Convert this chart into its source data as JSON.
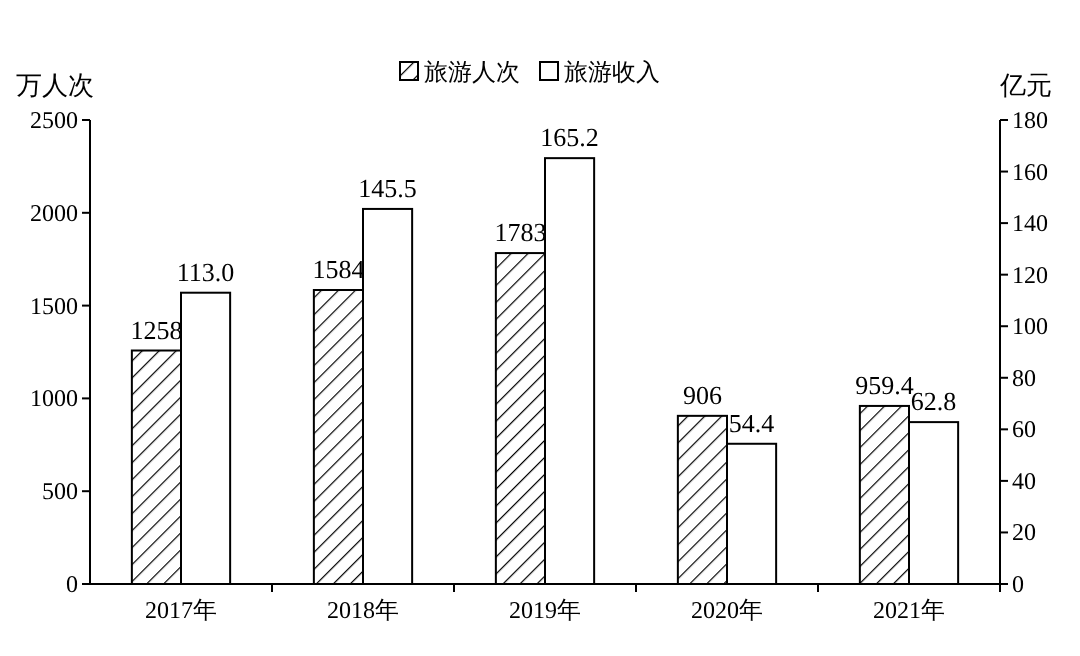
{
  "chart_data": {
    "type": "bar",
    "ylabel": "万人次",
    "y2label": "亿元",
    "categories": [
      "2017年",
      "2018年",
      "2019年",
      "2020年",
      "2021年"
    ],
    "series": [
      {
        "name": "旅游人次",
        "color": "#000000",
        "values": [
          1258,
          1584,
          1783,
          906,
          959.4
        ],
        "value_labels": [
          "1258",
          "1584",
          "1783",
          "906",
          "959.4"
        ]
      },
      {
        "name": "旅游收入",
        "color": "#ffffff",
        "axis": "y2",
        "values": [
          113.0,
          145.5,
          165.2,
          54.4,
          62.8
        ],
        "value_labels": [
          "113.0",
          "145.5",
          "165.2",
          "54.4",
          "62.8"
        ]
      }
    ],
    "ylim": [
      0,
      2500
    ],
    "yticks": [
      0,
      500,
      1000,
      1500,
      2000,
      2500
    ],
    "y2lim": [
      0,
      180
    ],
    "y2ticks": [
      0,
      20,
      40,
      60,
      80,
      100,
      120,
      140,
      160,
      180
    ],
    "grid": false,
    "legend": "top"
  }
}
